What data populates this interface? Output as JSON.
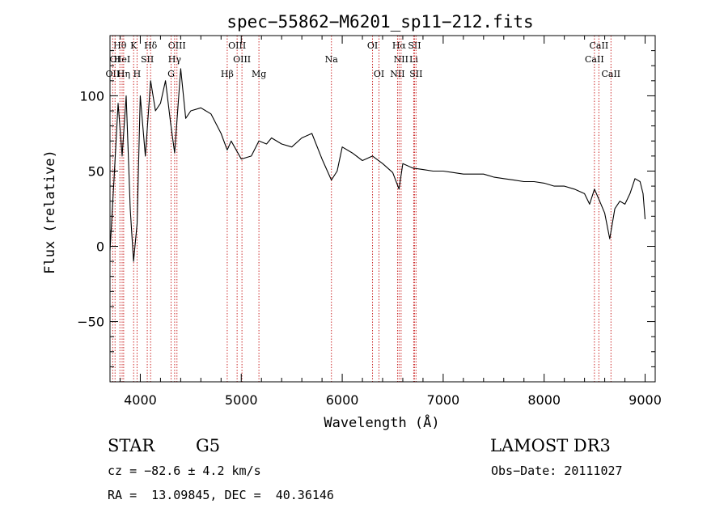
{
  "chart_data": {
    "type": "line",
    "title": "spec−55862−M6201_sp11−212.fits",
    "xlabel": "Wavelength (Å)",
    "ylabel": "Flux (relative)",
    "xlim": [
      3700,
      9100
    ],
    "ylim": [
      -90,
      140
    ],
    "xticks": [
      "4000",
      "5000",
      "6000",
      "7000",
      "8000",
      "9000"
    ],
    "yticks": [
      "100",
      "50",
      "0",
      "−50"
    ],
    "series": [
      {
        "name": "spectrum",
        "x": [
          3700,
          3740,
          3780,
          3820,
          3860,
          3900,
          3933,
          3968,
          4000,
          4050,
          4102,
          4150,
          4200,
          4250,
          4300,
          4340,
          4400,
          4450,
          4500,
          4600,
          4700,
          4800,
          4861,
          4900,
          5000,
          5100,
          5175,
          5250,
          5300,
          5400,
          5500,
          5600,
          5700,
          5800,
          5893,
          5950,
          6000,
          6100,
          6200,
          6300,
          6400,
          6500,
          6563,
          6600,
          6700,
          6800,
          6900,
          7000,
          7100,
          7200,
          7300,
          7400,
          7500,
          7600,
          7700,
          7800,
          7900,
          8000,
          8100,
          8200,
          8300,
          8400,
          8450,
          8498,
          8550,
          8600,
          8650,
          8700,
          8750,
          8800,
          8850,
          8900,
          8950,
          8980,
          9000
        ],
        "values": [
          -3,
          45,
          95,
          60,
          100,
          25,
          -10,
          15,
          100,
          60,
          110,
          90,
          95,
          110,
          82,
          62,
          118,
          85,
          90,
          92,
          88,
          75,
          64,
          70,
          58,
          60,
          70,
          68,
          72,
          68,
          66,
          72,
          75,
          58,
          44,
          50,
          66,
          62,
          57,
          60,
          55,
          49,
          38,
          55,
          52,
          51,
          50,
          50,
          49,
          48,
          48,
          48,
          46,
          45,
          44,
          43,
          43,
          42,
          40,
          40,
          38,
          35,
          28,
          38,
          30,
          22,
          5,
          25,
          30,
          28,
          35,
          45,
          43,
          35,
          18
        ]
      }
    ],
    "lines": [
      {
        "label": "OII",
        "wave": 3727,
        "row": 3
      },
      {
        "label": "Hθ",
        "wave": 3798,
        "row": 1
      },
      {
        "label": "OI",
        "wave": 3750,
        "row": 2
      },
      {
        "label": "HeI",
        "wave": 3820,
        "row": 2
      },
      {
        "label": "Hη",
        "wave": 3835,
        "row": 3
      },
      {
        "label": "K",
        "wave": 3934,
        "row": 1
      },
      {
        "label": "SII",
        "wave": 4069,
        "row": 2
      },
      {
        "label": "H",
        "wave": 3968,
        "row": 3
      },
      {
        "label": "Hδ",
        "wave": 4102,
        "row": 1
      },
      {
        "label": "OIII",
        "wave": 4363,
        "row": 1
      },
      {
        "label": "Hγ",
        "wave": 4340,
        "row": 2
      },
      {
        "label": "G",
        "wave": 4305,
        "row": 3
      },
      {
        "label": "OIII",
        "wave": 4959,
        "row": 1
      },
      {
        "label": "OIII",
        "wave": 5007,
        "row": 2
      },
      {
        "label": "Hβ",
        "wave": 4861,
        "row": 3
      },
      {
        "label": "Mg",
        "wave": 5175,
        "row": 3
      },
      {
        "label": "Na",
        "wave": 5893,
        "row": 2
      },
      {
        "label": "OI",
        "wave": 6300,
        "row": 1
      },
      {
        "label": "OI",
        "wave": 6364,
        "row": 3
      },
      {
        "label": "Hα",
        "wave": 6563,
        "row": 1
      },
      {
        "label": "NII",
        "wave": 6583,
        "row": 2
      },
      {
        "label": "NII",
        "wave": 6548,
        "row": 3
      },
      {
        "label": "SII",
        "wave": 6716,
        "row": 1
      },
      {
        "label": "Li",
        "wave": 6708,
        "row": 2
      },
      {
        "label": "SII",
        "wave": 6731,
        "row": 3
      },
      {
        "label": "CaII",
        "wave": 8542,
        "row": 1
      },
      {
        "label": "CaII",
        "wave": 8498,
        "row": 2
      },
      {
        "label": "CaII",
        "wave": 8662,
        "row": 3
      }
    ],
    "line_color": "#cc2a2a",
    "plot_color": "#000000"
  },
  "info": {
    "class_label": "STAR",
    "subclass_label": "G5",
    "survey": "LAMOST DR3",
    "cz": "cz = −82.6 ± 4.2 km/s",
    "obs_date": "Obs−Date: 20111027",
    "coords": "RA =  13.09845, DEC =  40.36146"
  }
}
